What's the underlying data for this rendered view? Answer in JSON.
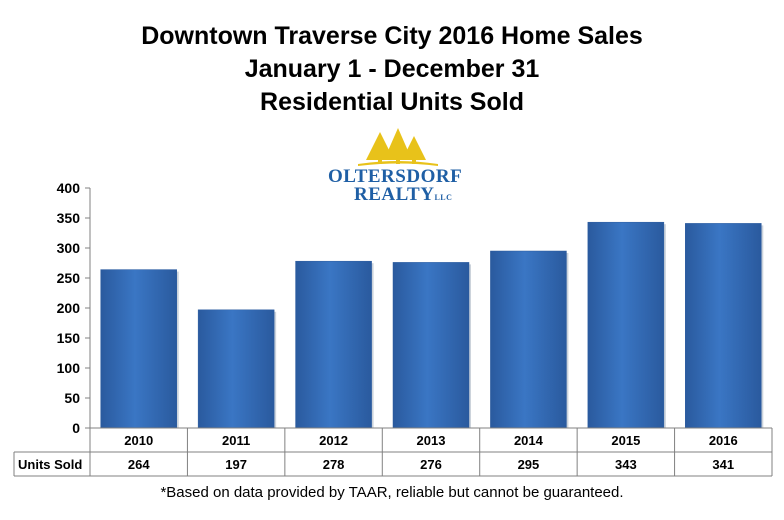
{
  "title_lines": [
    "Downtown Traverse City 2016 Home Sales",
    "January 1 - December 31",
    "Residential Units Sold"
  ],
  "logo": {
    "line1": "OLTERSDORF",
    "line2": "REALTY",
    "suffix": "LLC"
  },
  "footnote": "*Based on data provided by TAAR, reliable but cannot be guaranteed.",
  "colors": {
    "bar": "#3a76c4",
    "bar_dark": "#2a5a9e",
    "logo_trees": "#e8c21a",
    "logo_text": "#1f5fa5"
  },
  "chart_data": {
    "type": "bar",
    "title": "Downtown Traverse City 2016 Home Sales January 1 - December 31 Residential Units Sold",
    "categories": [
      "2010",
      "2011",
      "2012",
      "2013",
      "2014",
      "2015",
      "2016"
    ],
    "series": [
      {
        "name": "Units Sold",
        "values": [
          264,
          197,
          278,
          276,
          295,
          343,
          341
        ]
      }
    ],
    "ylim": [
      0,
      400
    ],
    "yticks": [
      0,
      50,
      100,
      150,
      200,
      250,
      300,
      350,
      400
    ],
    "xlabel": "",
    "ylabel": "",
    "grid": false,
    "data_table": true
  }
}
